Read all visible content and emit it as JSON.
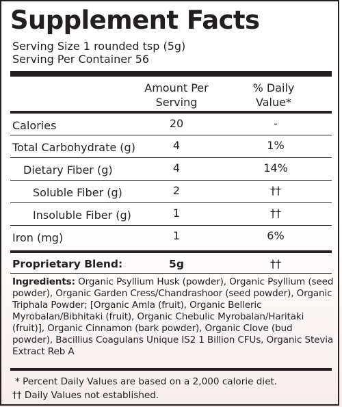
{
  "title": "Supplement Facts",
  "serving_size": "Serving Size 1 rounded tsp (5g)",
  "servings_per_container": "Serving Per Container 56",
  "columns": {
    "amount_line1": "Amount Per",
    "amount_line2": "Serving",
    "dv_line1": "% Daily",
    "dv_line2": "Value*"
  },
  "rows": [
    {
      "name": "Calories",
      "amount": "20",
      "dv": "-"
    },
    {
      "name": "Total Carbohydrate (g)",
      "amount": "4",
      "dv": "1%"
    },
    {
      "name": "Dietary Fiber (g)",
      "amount": "4",
      "dv": "14%"
    },
    {
      "name": "Soluble Fiber (g)",
      "amount": "2",
      "dv": "††"
    },
    {
      "name": "Insoluble Fiber (g)",
      "amount": "1",
      "dv": "††"
    },
    {
      "name": "Iron (mg)",
      "amount": "1",
      "dv": "6%"
    }
  ],
  "blend": {
    "name": "Proprietary Blend:",
    "amount": "5g",
    "dv": "††"
  },
  "ingredients": {
    "label": "Ingredients:",
    "text": "Organic Psyllium Husk (powder), Organic Psyllium (seed powder), Organic Garden Cress/Chandrashoor (seed powder), Organic Triphala  Powder; [Organic Amla (fruit), Organic Belleric Myrobalan/Bibhitaki (fruit), Organic Chebulic Myrobalan/Haritaki (fruit)], Organic Cinnamon (bark powder), Organic Clove (bud powder), Bacillius Coagulans Unique IS2 1 Billion CFUs, Organic Stevia Extract Reb A"
  },
  "footnotes": {
    "percent": "* Percent Daily Values are based on a 2,000 calorie diet.",
    "dagger": "†† Daily Values not established."
  }
}
